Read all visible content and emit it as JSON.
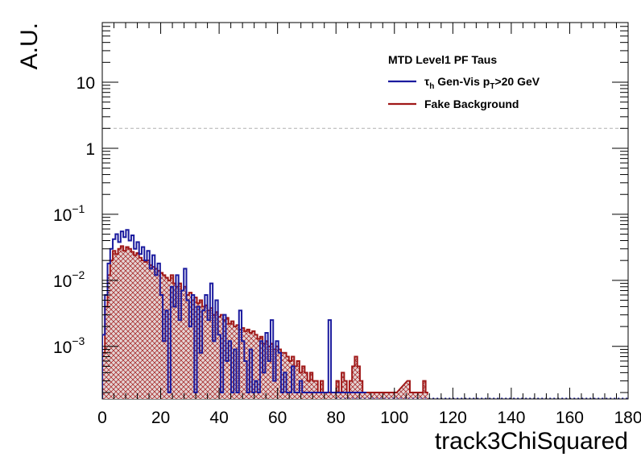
{
  "chart_data": {
    "type": "line",
    "title": "",
    "xlabel": "track3ChiSquared",
    "ylabel": "A.U.",
    "xlim": [
      0,
      180
    ],
    "ylim": [
      0.00016,
      80
    ],
    "yscale": "log",
    "x_ticks": [
      "0",
      "20",
      "40",
      "60",
      "80",
      "100",
      "120",
      "140",
      "160",
      "180"
    ],
    "y_ticks": [
      {
        "value": 10,
        "base": "10",
        "exp": ""
      },
      {
        "value": 1,
        "base": "1",
        "exp": ""
      },
      {
        "value": 0.1,
        "base": "10",
        "exp": "−1"
      },
      {
        "value": 0.01,
        "base": "10",
        "exp": "−2"
      },
      {
        "value": 0.001,
        "base": "10",
        "exp": "−3"
      }
    ],
    "reference_line_y": 2,
    "legend": {
      "header": "MTD Level1 PF Taus",
      "placement": "top-right",
      "entries": [
        {
          "label_main": "τ",
          "label_sub1": "h",
          "label_mid": " Gen-Vis p",
          "label_sub2": "T",
          "label_end": ">20 GeV",
          "color": "#1a1a9e"
        },
        {
          "label_main": "Fake Background",
          "color": "#a01818"
        }
      ]
    },
    "bin_width": 0.9,
    "series": [
      {
        "name": "τh Gen-Vis pT>20 GeV",
        "color": "#1a1a9e",
        "hatched": false,
        "points": [
          [
            0.45,
            0.0015
          ],
          [
            1.35,
            0.006
          ],
          [
            2.25,
            0.018
          ],
          [
            3.15,
            0.03
          ],
          [
            4.05,
            0.042
          ],
          [
            4.95,
            0.05
          ],
          [
            5.85,
            0.038
          ],
          [
            6.75,
            0.055
          ],
          [
            7.65,
            0.045
          ],
          [
            8.55,
            0.058
          ],
          [
            9.45,
            0.04
          ],
          [
            10.35,
            0.048
          ],
          [
            11.25,
            0.03
          ],
          [
            12.15,
            0.038
          ],
          [
            13.05,
            0.025
          ],
          [
            13.95,
            0.032
          ],
          [
            14.85,
            0.02
          ],
          [
            15.75,
            0.028
          ],
          [
            16.65,
            0.015
          ],
          [
            17.55,
            0.024
          ],
          [
            18.45,
            0.012
          ],
          [
            19.35,
            0.018
          ],
          [
            20.25,
            0.006
          ],
          [
            21.15,
            0.0012
          ],
          [
            22.05,
            0.0035
          ],
          [
            22.95,
            0.0002
          ],
          [
            23.85,
            0.008
          ],
          [
            24.75,
            0.004
          ],
          [
            25.65,
            0.012
          ],
          [
            26.55,
            0.0025
          ],
          [
            27.45,
            0.007
          ],
          [
            28.35,
            0.015
          ],
          [
            29.25,
            0.005
          ],
          [
            30.15,
            0.002
          ],
          [
            31.05,
            0.006
          ],
          [
            31.95,
            0.0002
          ],
          [
            32.85,
            0.004
          ],
          [
            33.75,
            0.0008
          ],
          [
            34.65,
            0.0035
          ],
          [
            35.55,
            0.006
          ],
          [
            36.45,
            0.0025
          ],
          [
            37.35,
            0.009
          ],
          [
            38.25,
            0.0012
          ],
          [
            39.15,
            0.005
          ],
          [
            40.05,
            0.0015
          ],
          [
            40.95,
            0.0002
          ],
          [
            41.85,
            0.003
          ],
          [
            42.75,
            0.0006
          ],
          [
            43.65,
            0.0012
          ],
          [
            44.55,
            0.0002
          ],
          [
            45.45,
            0.0009
          ],
          [
            46.35,
            0.0002
          ],
          [
            47.25,
            0.0035
          ],
          [
            48.15,
            0.0012
          ],
          [
            49.05,
            0.0006
          ],
          [
            49.95,
            0.0002
          ],
          [
            50.85,
            0.0009
          ],
          [
            51.75,
            0.0002
          ],
          [
            52.65,
            0.0003
          ],
          [
            53.55,
            0.0002
          ],
          [
            54.45,
            0.0012
          ],
          [
            55.35,
            0.0004
          ],
          [
            56.25,
            0.0016
          ],
          [
            57.15,
            0.0006
          ],
          [
            58.05,
            0.0025
          ],
          [
            58.95,
            0.0003
          ],
          [
            59.85,
            0.0012
          ],
          [
            60.75,
            0.0008
          ],
          [
            61.65,
            0.0002
          ],
          [
            62.55,
            0.0004
          ],
          [
            63.45,
            0.0002
          ],
          [
            64.35,
            0.0002
          ],
          [
            65.25,
            0.0005
          ],
          [
            66.15,
            0.0002
          ],
          [
            67.05,
            0.0002
          ],
          [
            67.95,
            0.0003
          ],
          [
            68.85,
            0.0002
          ],
          [
            69.75,
            0.0002
          ],
          [
            70.65,
            0.0002
          ],
          [
            71.55,
            0.0002
          ],
          [
            72.45,
            0.0002
          ],
          [
            73.35,
            0.0002
          ],
          [
            74.25,
            0.0002
          ],
          [
            75.15,
            0.0002
          ],
          [
            76.05,
            0.0002
          ],
          [
            76.95,
            0.0002
          ],
          [
            77.85,
            0.0025
          ],
          [
            78.75,
            0.0002
          ],
          [
            79.65,
            0.0002
          ],
          [
            85,
            0.0002
          ],
          [
            90,
            0.0002
          ]
        ]
      },
      {
        "name": "Fake Background",
        "color": "#a01818",
        "hatched": true,
        "points": [
          [
            0.45,
            0.0008
          ],
          [
            1.35,
            0.004
          ],
          [
            2.25,
            0.012
          ],
          [
            3.15,
            0.02
          ],
          [
            4.05,
            0.028
          ],
          [
            4.95,
            0.025
          ],
          [
            5.85,
            0.03
          ],
          [
            6.75,
            0.033
          ],
          [
            7.65,
            0.028
          ],
          [
            8.55,
            0.032
          ],
          [
            9.45,
            0.03
          ],
          [
            10.35,
            0.027
          ],
          [
            11.25,
            0.024
          ],
          [
            12.15,
            0.026
          ],
          [
            13.05,
            0.022
          ],
          [
            13.95,
            0.02
          ],
          [
            14.85,
            0.019
          ],
          [
            15.75,
            0.02
          ],
          [
            16.65,
            0.017
          ],
          [
            17.55,
            0.016
          ],
          [
            18.45,
            0.015
          ],
          [
            19.35,
            0.014
          ],
          [
            20.25,
            0.013
          ],
          [
            21.15,
            0.012
          ],
          [
            22.05,
            0.011
          ],
          [
            22.95,
            0.01
          ],
          [
            23.85,
            0.012
          ],
          [
            24.75,
            0.009
          ],
          [
            25.65,
            0.008
          ],
          [
            26.55,
            0.009
          ],
          [
            27.45,
            0.007
          ],
          [
            28.35,
            0.008
          ],
          [
            29.25,
            0.006
          ],
          [
            30.15,
            0.0065
          ],
          [
            31.05,
            0.005
          ],
          [
            31.95,
            0.0055
          ],
          [
            32.85,
            0.0045
          ],
          [
            33.75,
            0.005
          ],
          [
            34.65,
            0.004
          ],
          [
            35.55,
            0.0042
          ],
          [
            36.45,
            0.0035
          ],
          [
            37.35,
            0.0038
          ],
          [
            38.25,
            0.003
          ],
          [
            39.15,
            0.0033
          ],
          [
            40.05,
            0.0028
          ],
          [
            40.95,
            0.003
          ],
          [
            41.85,
            0.0025
          ],
          [
            42.75,
            0.0027
          ],
          [
            43.65,
            0.0022
          ],
          [
            44.55,
            0.0024
          ],
          [
            45.45,
            0.002
          ],
          [
            46.35,
            0.0021
          ],
          [
            47.25,
            0.0018
          ],
          [
            48.15,
            0.0019
          ],
          [
            49.05,
            0.0017
          ],
          [
            49.95,
            0.0018
          ],
          [
            50.85,
            0.0016
          ],
          [
            51.75,
            0.0017
          ],
          [
            52.65,
            0.0015
          ],
          [
            53.55,
            0.0013
          ],
          [
            54.45,
            0.0014
          ],
          [
            55.35,
            0.0011
          ],
          [
            56.25,
            0.0012
          ],
          [
            57.15,
            0.001
          ],
          [
            58.05,
            0.0011
          ],
          [
            58.95,
            0.0009
          ],
          [
            59.85,
            0.001
          ],
          [
            60.75,
            0.0009
          ],
          [
            61.65,
            0.0008
          ],
          [
            62.55,
            0.0008
          ],
          [
            63.45,
            0.0007
          ],
          [
            64.35,
            0.0006
          ],
          [
            65.25,
            0.0007
          ],
          [
            66.15,
            0.0005
          ],
          [
            67.05,
            0.0006
          ],
          [
            67.95,
            0.0004
          ],
          [
            68.85,
            0.0005
          ],
          [
            69.75,
            0.0004
          ],
          [
            70.65,
            0.0003
          ],
          [
            71.55,
            0.0004
          ],
          [
            72.45,
            0.0003
          ],
          [
            73.35,
            0.0003
          ],
          [
            74.25,
            0.0002
          ],
          [
            75.15,
            0.0003
          ],
          [
            76.05,
            0.0002
          ],
          [
            76.95,
            0.0002
          ],
          [
            77.85,
            0.0002
          ],
          [
            78.75,
            0.0002
          ],
          [
            79.65,
            0.0002
          ],
          [
            80.55,
            0.0003
          ],
          [
            81.45,
            0.0002
          ],
          [
            82.35,
            0.0004
          ],
          [
            83.25,
            0.0003
          ],
          [
            84.15,
            0.0002
          ],
          [
            85.05,
            0.0003
          ],
          [
            85.95,
            0.0005
          ],
          [
            86.85,
            0.0007
          ],
          [
            87.75,
            0.0005
          ],
          [
            88.65,
            0.0003
          ],
          [
            89.55,
            0.0002
          ],
          [
            90.45,
            0.0002
          ],
          [
            91.35,
            0.0002
          ],
          [
            92.25,
            0.0002
          ],
          [
            93.15,
            0.0002
          ],
          [
            94.05,
            0.0002
          ],
          [
            94.95,
            0.0002
          ],
          [
            95.85,
            0.0002
          ],
          [
            96.75,
            0.0002
          ],
          [
            97.65,
            0.0002
          ],
          [
            98.55,
            0.0002
          ],
          [
            99.45,
            0.0002
          ],
          [
            100.35,
            0.0002
          ],
          [
            104.85,
            0.0003
          ],
          [
            105.75,
            0.0002
          ],
          [
            109.35,
            0.0002
          ],
          [
            110.25,
            0.0003
          ],
          [
            111.15,
            0.0002
          ]
        ]
      }
    ]
  }
}
